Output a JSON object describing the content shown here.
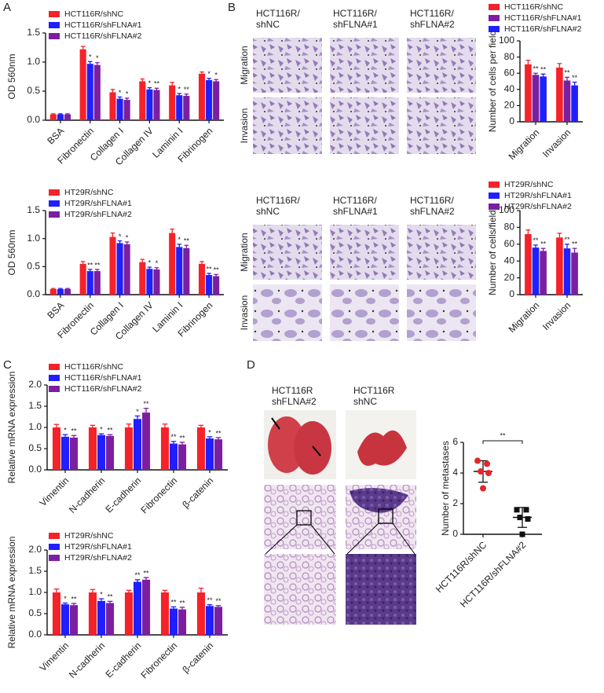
{
  "panels": {
    "letters": [
      "A",
      "B",
      "C",
      "D"
    ],
    "b_images": [
      {
        "columns": [
          [
            "HCT116R/",
            "shNC"
          ],
          [
            "HCT116R/",
            "shFLNA#1"
          ],
          [
            "HCT116R/",
            "shFLNA#2"
          ]
        ],
        "rows": [
          "Migration",
          "Invasion"
        ]
      },
      {
        "columns": [
          [
            "HCT116R/",
            "shNC"
          ],
          [
            "HCT116R/",
            "shFLNA#1"
          ],
          [
            "HCT116R/",
            "shFLNA#2"
          ]
        ],
        "rows": [
          "Migration",
          "Invasion"
        ]
      }
    ],
    "d_images": {
      "columns": [
        [
          "HCT116R",
          "shFLNA#2"
        ],
        [
          "HCT116R",
          "shNC"
        ]
      ]
    }
  },
  "chart_data": [
    {
      "type": "bar",
      "ylabel": "OD 560nm",
      "categories": [
        "BSA",
        "Fibronectin",
        "Collagen I",
        "Collagen IV",
        "Laminin I",
        "Fibrinogen"
      ],
      "series": [
        {
          "name": "HCT116R/shNC",
          "color": "#f5222a",
          "values": [
            0.1,
            1.22,
            0.48,
            0.67,
            0.6,
            0.8
          ],
          "errors": [
            0.01,
            0.05,
            0.05,
            0.04,
            0.05,
            0.03
          ],
          "significance": [
            null,
            null,
            null,
            null,
            null,
            null
          ]
        },
        {
          "name": "HCT116R/shFLNA#1",
          "color": "#1f1fff",
          "values": [
            0.1,
            0.97,
            0.37,
            0.53,
            0.43,
            0.69
          ],
          "errors": [
            0.01,
            0.04,
            0.03,
            0.03,
            0.03,
            0.03
          ],
          "significance": [
            null,
            "*",
            "*",
            "*",
            "*",
            "*"
          ]
        },
        {
          "name": "HCT116R/shFLNA#2",
          "color": "#7b1fa2",
          "values": [
            0.1,
            0.95,
            0.35,
            0.52,
            0.42,
            0.67
          ],
          "errors": [
            0.01,
            0.04,
            0.03,
            0.03,
            0.03,
            0.03
          ],
          "significance": [
            null,
            "*",
            "*",
            "**",
            "**",
            "*"
          ]
        }
      ],
      "ylim": [
        0,
        1.5
      ],
      "yticks": [
        {
          "value": 0,
          "label": "0.0"
        },
        {
          "value": 0.5,
          "label": "0.5"
        },
        {
          "value": 1,
          "label": "1.0"
        },
        {
          "value": 1.5,
          "label": "1.5"
        }
      ]
    },
    {
      "type": "bar",
      "ylabel": "OD 560nm",
      "categories": [
        "BSA",
        "Fibronectin",
        "Collagen I",
        "Collagen IV",
        "Laminin I",
        "Fibrinogen"
      ],
      "series": [
        {
          "name": "HT29R/shNC",
          "color": "#f5222a",
          "values": [
            0.1,
            0.55,
            1.03,
            0.58,
            1.1,
            0.55
          ],
          "errors": [
            0.01,
            0.04,
            0.07,
            0.05,
            0.07,
            0.04
          ],
          "significance": [
            null,
            null,
            null,
            null,
            null,
            null
          ]
        },
        {
          "name": "HT29R/shFLNA#1",
          "color": "#1f1fff",
          "values": [
            0.1,
            0.42,
            0.92,
            0.46,
            0.85,
            0.35
          ],
          "errors": [
            0.01,
            0.03,
            0.04,
            0.03,
            0.05,
            0.03
          ],
          "significance": [
            null,
            "**",
            "*",
            "*",
            "*",
            "**"
          ]
        },
        {
          "name": "HT29R/shFLNA#2",
          "color": "#7b1fa2",
          "values": [
            0.1,
            0.42,
            0.9,
            0.45,
            0.83,
            0.33
          ],
          "errors": [
            0.01,
            0.03,
            0.04,
            0.03,
            0.05,
            0.03
          ],
          "significance": [
            null,
            "**",
            "*",
            "*",
            "**",
            "**"
          ]
        }
      ],
      "ylim": [
        0,
        1.5
      ],
      "yticks": [
        {
          "value": 0,
          "label": "0.0"
        },
        {
          "value": 0.5,
          "label": "0.5"
        },
        {
          "value": 1,
          "label": "1.0"
        },
        {
          "value": 1.5,
          "label": "1.5"
        }
      ]
    },
    {
      "type": "bar",
      "ylabel": "Number of cells per field",
      "categories": [
        "Migration",
        "Invasion"
      ],
      "series": [
        {
          "name": "HCT116R/shNC",
          "color": "#f5222a",
          "values": [
            71,
            67
          ],
          "errors": [
            5,
            5
          ],
          "significance": [
            null,
            null
          ]
        },
        {
          "name": "HCT116R/shFLNA#1",
          "color": "#7b1fa2",
          "values": [
            58,
            51
          ],
          "errors": [
            2,
            4
          ],
          "significance": [
            "**",
            "**"
          ]
        },
        {
          "name": "HCT116R/shFLNA#2",
          "color": "#1f1fff",
          "values": [
            56,
            45
          ],
          "errors": [
            3,
            4
          ],
          "significance": [
            "**",
            "**"
          ]
        }
      ],
      "ylim": [
        0,
        100
      ],
      "yticks": [
        0,
        20,
        40,
        60,
        80,
        100
      ]
    },
    {
      "type": "bar",
      "ylabel": "Number of cells/field",
      "categories": [
        "Migration",
        "Invasion"
      ],
      "series": [
        {
          "name": "HT29R/shNC",
          "color": "#f5222a",
          "values": [
            72,
            68
          ],
          "errors": [
            5,
            5
          ],
          "significance": [
            null,
            null
          ]
        },
        {
          "name": "HT29R/shFLNA#1",
          "color": "#1f1fff",
          "values": [
            56,
            55
          ],
          "errors": [
            3,
            5
          ],
          "significance": [
            "**",
            "**"
          ]
        },
        {
          "name": "HT29R/shFLNA#2",
          "color": "#7b1fa2",
          "values": [
            52,
            50
          ],
          "errors": [
            3,
            5
          ],
          "significance": [
            "**",
            "**"
          ]
        }
      ],
      "ylim": [
        0,
        100
      ],
      "yticks": [
        0,
        20,
        40,
        60,
        80,
        100
      ]
    },
    {
      "type": "bar",
      "ylabel": "Relative mRNA expression",
      "categories": [
        "Vimentin",
        "N-cadherin",
        "E-cadherin",
        "Fibronectin",
        "β-catenin"
      ],
      "series": [
        {
          "name": "HCT116R/shNC",
          "color": "#f5222a",
          "values": [
            1.0,
            1.0,
            1.0,
            1.0,
            1.0
          ],
          "errors": [
            0.07,
            0.05,
            0.08,
            0.08,
            0.05
          ],
          "significance": [
            null,
            null,
            null,
            null,
            null
          ]
        },
        {
          "name": "HCT116R/shFLNA#1",
          "color": "#1f1fff",
          "values": [
            0.78,
            0.82,
            1.2,
            0.62,
            0.74
          ],
          "errors": [
            0.05,
            0.03,
            0.07,
            0.05,
            0.04
          ],
          "significance": [
            "*",
            "*",
            "*",
            "**",
            "*"
          ]
        },
        {
          "name": "HCT116R/shFLNA#2",
          "color": "#7b1fa2",
          "values": [
            0.76,
            0.8,
            1.35,
            0.6,
            0.72
          ],
          "errors": [
            0.05,
            0.03,
            0.1,
            0.05,
            0.04
          ],
          "significance": [
            "**",
            "**",
            "**",
            "**",
            "**"
          ]
        }
      ],
      "ylim": [
        0,
        2
      ],
      "yticks": [
        {
          "value": 0,
          "label": "0.0"
        },
        {
          "value": 0.5,
          "label": "0.5"
        },
        {
          "value": 1,
          "label": "1.0"
        },
        {
          "value": 1.5,
          "label": "1.5"
        },
        {
          "value": 2,
          "label": "2.0"
        }
      ]
    },
    {
      "type": "bar",
      "ylabel": "Relative mRNA expression",
      "categories": [
        "Vimentin",
        "N-cadherin",
        "E-cadherin",
        "Fibronectin",
        "β-catenin"
      ],
      "series": [
        {
          "name": "HT29R/shNC",
          "color": "#f5222a",
          "values": [
            1.0,
            1.0,
            1.0,
            1.0,
            1.0
          ],
          "errors": [
            0.08,
            0.07,
            0.05,
            0.05,
            0.1
          ],
          "significance": [
            null,
            null,
            null,
            null,
            null
          ]
        },
        {
          "name": "HT29R/shFLNA#1",
          "color": "#1f1fff",
          "values": [
            0.72,
            0.8,
            1.25,
            0.62,
            0.68
          ],
          "errors": [
            0.03,
            0.05,
            0.05,
            0.04,
            0.03
          ],
          "significance": [
            "*",
            "*",
            "**",
            "**",
            "**"
          ]
        },
        {
          "name": "HT29R/shFLNA#2",
          "color": "#7b1fa2",
          "values": [
            0.7,
            0.75,
            1.3,
            0.6,
            0.66
          ],
          "errors": [
            0.04,
            0.04,
            0.05,
            0.05,
            0.03
          ],
          "significance": [
            "**",
            "**",
            "**",
            "**",
            "**"
          ]
        }
      ],
      "ylim": [
        0,
        2
      ],
      "yticks": [
        {
          "value": 0,
          "label": "0.0"
        },
        {
          "value": 0.5,
          "label": "0.5"
        },
        {
          "value": 1,
          "label": "1.0"
        },
        {
          "value": 1.5,
          "label": "1.5"
        },
        {
          "value": 2,
          "label": "2.0"
        }
      ]
    },
    {
      "type": "dot",
      "ylabel": "Number of metastases",
      "categories": [
        "HCT116R/shNC",
        "HCT116R/shFLNA#2"
      ],
      "groups": [
        {
          "color": "#e3262a",
          "values": [
            4.8,
            4.6,
            4.1,
            4.0,
            3.0
          ],
          "mean": 4.1,
          "sd": 0.7
        },
        {
          "color": "#111111",
          "values": [
            1.6,
            1.6,
            1.1,
            1.0,
            0.0
          ],
          "mean": 1.1,
          "sd": 0.65
        }
      ],
      "significance": "**",
      "ylim": [
        0,
        6
      ],
      "yticks": [
        0,
        2,
        4,
        6
      ]
    }
  ]
}
